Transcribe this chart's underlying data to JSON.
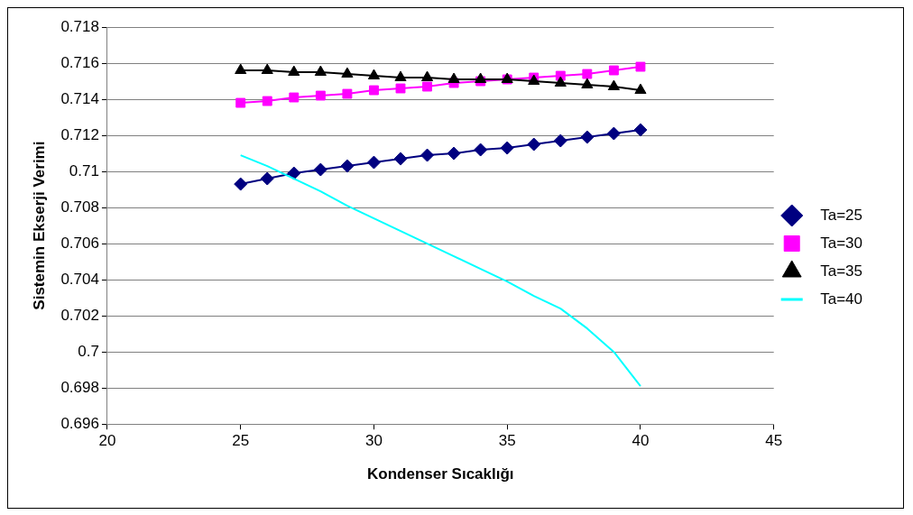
{
  "chart_data": {
    "type": "line",
    "xlabel": "Kondenser Sıcaklığı",
    "ylabel": "Sistemin Ekserji Verimi",
    "x": [
      25,
      26,
      27,
      28,
      29,
      30,
      31,
      32,
      33,
      34,
      35,
      36,
      37,
      38,
      39,
      40
    ],
    "xlim": [
      20,
      45
    ],
    "xticks": [
      20,
      25,
      30,
      35,
      40,
      45
    ],
    "ylim": [
      0.696,
      0.718
    ],
    "yticks": [
      0.696,
      0.698,
      0.7,
      0.702,
      0.704,
      0.706,
      0.708,
      0.71,
      0.712,
      0.714,
      0.716,
      0.718
    ],
    "grid": "y",
    "legend": "right",
    "series": [
      {
        "name": "Ta=25",
        "color": "#000080",
        "marker": "diamond",
        "values": [
          0.7093,
          0.7096,
          0.7099,
          0.7101,
          0.7103,
          0.7105,
          0.7107,
          0.7109,
          0.711,
          0.7112,
          0.7113,
          0.7115,
          0.7117,
          0.7119,
          0.7121,
          0.7123
        ]
      },
      {
        "name": "Ta=30",
        "color": "#ff00ff",
        "marker": "square",
        "values": [
          0.7138,
          0.7139,
          0.7141,
          0.7142,
          0.7143,
          0.7145,
          0.7146,
          0.7147,
          0.7149,
          0.715,
          0.7151,
          0.7152,
          0.7153,
          0.7154,
          0.7156,
          0.7158
        ]
      },
      {
        "name": "Ta=35",
        "color": "#000000",
        "marker": "triangle",
        "values": [
          0.7156,
          0.7156,
          0.7155,
          0.7155,
          0.7154,
          0.7153,
          0.7152,
          0.7152,
          0.7151,
          0.7151,
          0.7151,
          0.715,
          0.7149,
          0.7148,
          0.7147,
          0.7145
        ]
      },
      {
        "name": "Ta=40",
        "color": "#00ffff",
        "marker": "none",
        "values": [
          0.7109,
          0.7103,
          0.7096,
          0.7089,
          0.7081,
          0.7074,
          0.7067,
          0.706,
          0.7053,
          0.7046,
          0.7039,
          0.7031,
          0.7024,
          0.7013,
          0.7,
          0.6981
        ]
      }
    ]
  }
}
